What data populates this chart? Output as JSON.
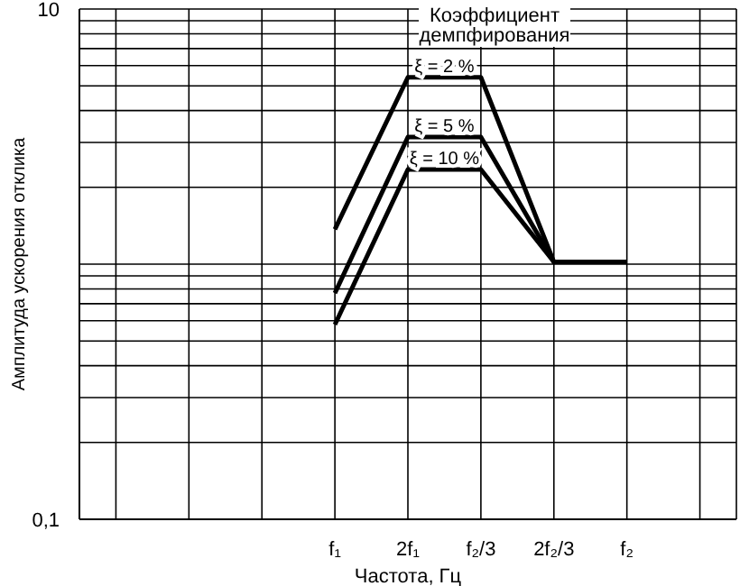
{
  "chart_data": {
    "type": "line",
    "xlabel": "Частота, Гц",
    "ylabel": "Амплитуда ускорения отклика",
    "legend_title": "Коэффициент демпфирования",
    "log": "y",
    "grid": true,
    "legend": false,
    "marker": "none",
    "line_style": "solid",
    "categories": [
      null,
      null,
      null,
      "f₁",
      "2f₁",
      "f₂/3",
      "2f₂/3",
      "f₂",
      null
    ],
    "series": [
      {
        "name": "ξ = 2 %",
        "color": "#000000",
        "values": [
          null,
          null,
          null,
          1.37,
          5.4,
          5.4,
          1.02,
          1.02,
          null
        ]
      },
      {
        "name": "ξ = 5 %",
        "color": "#000000",
        "values": [
          null,
          null,
          null,
          0.77,
          3.15,
          3.15,
          1.02,
          1.02,
          null
        ]
      },
      {
        "name": "ξ = 10 %",
        "color": "#000000",
        "values": [
          null,
          null,
          null,
          0.58,
          2.35,
          2.35,
          1.02,
          1.02,
          null
        ]
      }
    ],
    "ylim": [
      0.1,
      10
    ],
    "yticks": [
      {
        "value": 0.1,
        "label": "0,1"
      },
      {
        "value": 0.2,
        "label": null
      },
      {
        "value": 0.3,
        "label": null
      },
      {
        "value": 0.4,
        "label": null
      },
      {
        "value": 0.5,
        "label": null
      },
      {
        "value": 0.6,
        "label": null
      },
      {
        "value": 0.7,
        "label": null
      },
      {
        "value": 0.8,
        "label": null
      },
      {
        "value": 0.9,
        "label": null
      },
      {
        "value": 1,
        "label": null
      },
      {
        "value": 2,
        "label": null
      },
      {
        "value": 3,
        "label": null
      },
      {
        "value": 4,
        "label": null
      },
      {
        "value": 5,
        "label": null
      },
      {
        "value": 6,
        "label": null
      },
      {
        "value": 7,
        "label": null
      },
      {
        "value": 8,
        "label": null
      },
      {
        "value": 9,
        "label": null
      },
      {
        "value": 10,
        "label": "10"
      }
    ]
  }
}
